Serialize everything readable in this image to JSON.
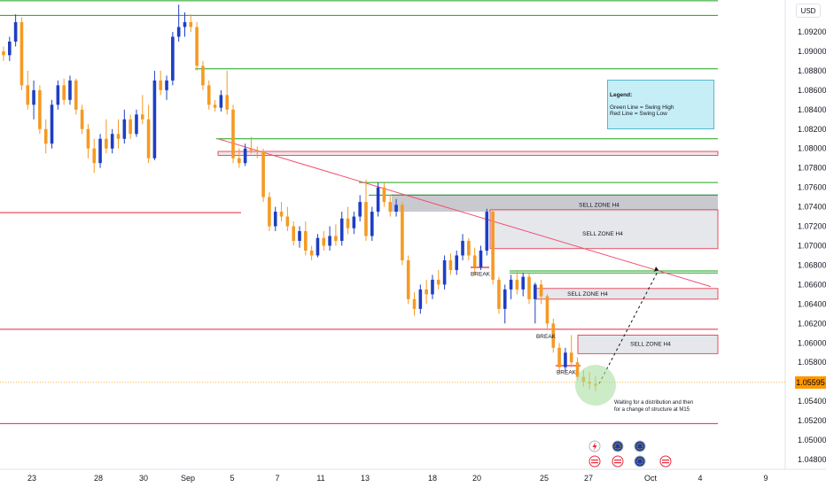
{
  "currency": "USD",
  "current_price": "1.05595",
  "legend": {
    "title": "Legend:",
    "line1": "Green Line = Swing High",
    "line2": "Red Line = Swing Low"
  },
  "annotation": {
    "line1": "Waiting for a distribution and then",
    "line2": "for a change of  structure at M15"
  },
  "colors": {
    "bull_candle": "#1e3fc2",
    "bear_candle": "#f59a23",
    "swing_high": "#1aa31a",
    "swing_low": "#e8273b",
    "trendline": "#f0506e",
    "zone_fill": "#e1e3e8",
    "zone_border": "#e8273b"
  },
  "chart_data": {
    "type": "candlestick",
    "symbol_currency": "USD",
    "y_axis": {
      "ylim": [
        1.0475,
        1.0955
      ],
      "ticks": [
        "1.09200",
        "1.09000",
        "1.08800",
        "1.08600",
        "1.08400",
        "1.08200",
        "1.08000",
        "1.07800",
        "1.07600",
        "1.07400",
        "1.07200",
        "1.07000",
        "1.06800",
        "1.06600",
        "1.06400",
        "1.06200",
        "1.06000",
        "1.05800",
        "1.05600",
        "1.05400",
        "1.05200",
        "1.05000",
        "1.04800"
      ]
    },
    "x_axis": {
      "ticks": [
        "23",
        "28",
        "30",
        "Sep",
        "5",
        "7",
        "11",
        "13",
        "18",
        "20",
        "25",
        "27",
        "Oct",
        "4",
        "9"
      ]
    },
    "swing_highs": [
      1.0952,
      1.0937,
      1.0882,
      1.081,
      1.0765,
      1.0752,
      1.0674,
      1.0672
    ],
    "swing_lows": [
      1.0734,
      1.0614,
      1.0517
    ],
    "zones": [
      {
        "label": "SELL ZONE H4",
        "high": 1.0753,
        "low": 1.0735
      },
      {
        "label": "SELL ZONE H4",
        "high": 1.0737,
        "low": 1.0697
      },
      {
        "label": "SELL ZONE H4",
        "high": 1.0656,
        "low": 1.0645
      },
      {
        "label": "SELL ZONE H4",
        "high": 1.0608,
        "low": 1.0589
      },
      {
        "label": "",
        "high": 1.0797,
        "low": 1.0793
      }
    ],
    "break_labels": [
      "BREAK",
      "BREAK",
      "BREAK"
    ],
    "trendline": {
      "from_price": 1.081,
      "to_price": 1.0658
    },
    "projection": {
      "from_price": 1.0558,
      "to_price": 1.0675
    },
    "candles": [
      [
        1.09,
        1.0905,
        1.089,
        1.0896
      ],
      [
        1.0896,
        1.0915,
        1.089,
        1.091
      ],
      [
        1.091,
        1.0938,
        1.0905,
        1.093
      ],
      [
        1.093,
        1.0935,
        1.086,
        1.0865
      ],
      [
        1.0865,
        1.088,
        1.084,
        1.0845
      ],
      [
        1.0845,
        1.087,
        1.083,
        1.086
      ],
      [
        1.086,
        1.0865,
        1.0815,
        1.082
      ],
      [
        1.082,
        1.083,
        1.0795,
        1.0805
      ],
      [
        1.0805,
        1.085,
        1.08,
        1.0845
      ],
      [
        1.0845,
        1.087,
        1.084,
        1.0865
      ],
      [
        1.0865,
        1.0872,
        1.0845,
        1.085
      ],
      [
        1.085,
        1.0875,
        1.0845,
        1.087
      ],
      [
        1.087,
        1.0872,
        1.0835,
        1.084
      ],
      [
        1.084,
        1.0845,
        1.0815,
        1.082
      ],
      [
        1.082,
        1.0825,
        1.079,
        1.08
      ],
      [
        1.08,
        1.081,
        1.0775,
        1.0785
      ],
      [
        1.0785,
        1.0815,
        1.078,
        1.081
      ],
      [
        1.081,
        1.083,
        1.0795,
        1.08
      ],
      [
        1.08,
        1.082,
        1.0795,
        1.0815
      ],
      [
        1.0815,
        1.083,
        1.08,
        1.081
      ],
      [
        1.081,
        1.084,
        1.0805,
        1.083
      ],
      [
        1.083,
        1.0835,
        1.081,
        1.0815
      ],
      [
        1.0815,
        1.084,
        1.0812,
        1.0835
      ],
      [
        1.0835,
        1.0855,
        1.0825,
        1.083
      ],
      [
        1.083,
        1.0845,
        1.0785,
        1.079
      ],
      [
        1.079,
        1.088,
        1.0788,
        1.087
      ],
      [
        1.087,
        1.088,
        1.0855,
        1.086
      ],
      [
        1.086,
        1.0875,
        1.085,
        1.087
      ],
      [
        1.087,
        1.092,
        1.0865,
        1.0915
      ],
      [
        1.0915,
        1.0948,
        1.091,
        1.0925
      ],
      [
        1.0925,
        1.094,
        1.0915,
        1.093
      ],
      [
        1.093,
        1.0938,
        1.092,
        1.0925
      ],
      [
        1.0925,
        1.093,
        1.088,
        1.0885
      ],
      [
        1.0885,
        1.089,
        1.086,
        1.0865
      ],
      [
        1.0865,
        1.087,
        1.084,
        1.0845
      ],
      [
        1.0845,
        1.085,
        1.0838,
        1.0842
      ],
      [
        1.0842,
        1.086,
        1.0838,
        1.0855
      ],
      [
        1.0855,
        1.088,
        1.0835,
        1.084
      ],
      [
        1.084,
        1.0845,
        1.0785,
        1.079
      ],
      [
        1.079,
        1.08,
        1.078,
        1.0785
      ],
      [
        1.0785,
        1.0805,
        1.0782,
        1.08
      ],
      [
        1.08,
        1.0812,
        1.0795,
        1.0798
      ],
      [
        1.0798,
        1.0802,
        1.079,
        1.0797
      ],
      [
        1.0797,
        1.08,
        1.0745,
        1.075
      ],
      [
        1.075,
        1.0755,
        1.0715,
        1.072
      ],
      [
        1.072,
        1.074,
        1.0715,
        1.0735
      ],
      [
        1.0735,
        1.0745,
        1.0725,
        1.073
      ],
      [
        1.073,
        1.074,
        1.0715,
        1.072
      ],
      [
        1.072,
        1.0725,
        1.07,
        1.0705
      ],
      [
        1.0705,
        1.072,
        1.0698,
        1.0715
      ],
      [
        1.0715,
        1.0725,
        1.069,
        1.0695
      ],
      [
        1.0695,
        1.07,
        1.0685,
        1.069
      ],
      [
        1.069,
        1.0712,
        1.0688,
        1.0708
      ],
      [
        1.0708,
        1.0715,
        1.0695,
        1.07
      ],
      [
        1.07,
        1.072,
        1.0695,
        1.071
      ],
      [
        1.071,
        1.0722,
        1.07,
        1.0705
      ],
      [
        1.0705,
        1.0735,
        1.07,
        1.0728
      ],
      [
        1.0728,
        1.074,
        1.0712,
        1.0718
      ],
      [
        1.0718,
        1.0735,
        1.0712,
        1.073
      ],
      [
        1.073,
        1.0752,
        1.0725,
        1.0745
      ],
      [
        1.0745,
        1.0768,
        1.0705,
        1.071
      ],
      [
        1.071,
        1.074,
        1.0705,
        1.0735
      ],
      [
        1.0735,
        1.0765,
        1.073,
        1.076
      ],
      [
        1.076,
        1.0765,
        1.074,
        1.0745
      ],
      [
        1.0745,
        1.0752,
        1.073,
        1.0735
      ],
      [
        1.0735,
        1.0748,
        1.073,
        1.0742
      ],
      [
        1.0742,
        1.0745,
        1.068,
        1.0685
      ],
      [
        1.0685,
        1.069,
        1.064,
        1.0645
      ],
      [
        1.0645,
        1.0652,
        1.0628,
        1.0635
      ],
      [
        1.0635,
        1.066,
        1.063,
        1.0655
      ],
      [
        1.0655,
        1.0665,
        1.064,
        1.065
      ],
      [
        1.065,
        1.067,
        1.0645,
        1.0665
      ],
      [
        1.0665,
        1.0675,
        1.0655,
        1.066
      ],
      [
        1.066,
        1.069,
        1.0655,
        1.0685
      ],
      [
        1.0685,
        1.0692,
        1.067,
        1.0675
      ],
      [
        1.0675,
        1.0695,
        1.067,
        1.069
      ],
      [
        1.069,
        1.0712,
        1.0685,
        1.0705
      ],
      [
        1.0705,
        1.0708,
        1.0685,
        1.069
      ],
      [
        1.069,
        1.0698,
        1.067,
        1.0678
      ],
      [
        1.0678,
        1.07,
        1.0675,
        1.0695
      ],
      [
        1.0695,
        1.0738,
        1.069,
        1.0735
      ],
      [
        1.0735,
        1.0738,
        1.066,
        1.0665
      ],
      [
        1.0665,
        1.0668,
        1.063,
        1.0635
      ],
      [
        1.0635,
        1.066,
        1.062,
        1.0655
      ],
      [
        1.0655,
        1.067,
        1.0645,
        1.0665
      ],
      [
        1.0665,
        1.0675,
        1.065,
        1.0655
      ],
      [
        1.0655,
        1.0672,
        1.0648,
        1.0668
      ],
      [
        1.0668,
        1.0672,
        1.064,
        1.0645
      ],
      [
        1.0645,
        1.0662,
        1.062,
        1.066
      ],
      [
        1.066,
        1.0665,
        1.064,
        1.0648
      ],
      [
        1.0648,
        1.065,
        1.0615,
        1.062
      ],
      [
        1.062,
        1.0625,
        1.059,
        1.0595
      ],
      [
        1.0595,
        1.06,
        1.057,
        1.0575
      ],
      [
        1.0575,
        1.0595,
        1.057,
        1.059
      ],
      [
        1.059,
        1.0608,
        1.0575,
        1.058
      ],
      [
        1.058,
        1.0585,
        1.0562,
        1.0565
      ],
      [
        1.0565,
        1.0572,
        1.0555,
        1.056
      ],
      [
        1.056,
        1.057,
        1.0552,
        1.0558
      ],
      [
        1.0558,
        1.0566,
        1.055,
        1.0556
      ]
    ]
  }
}
